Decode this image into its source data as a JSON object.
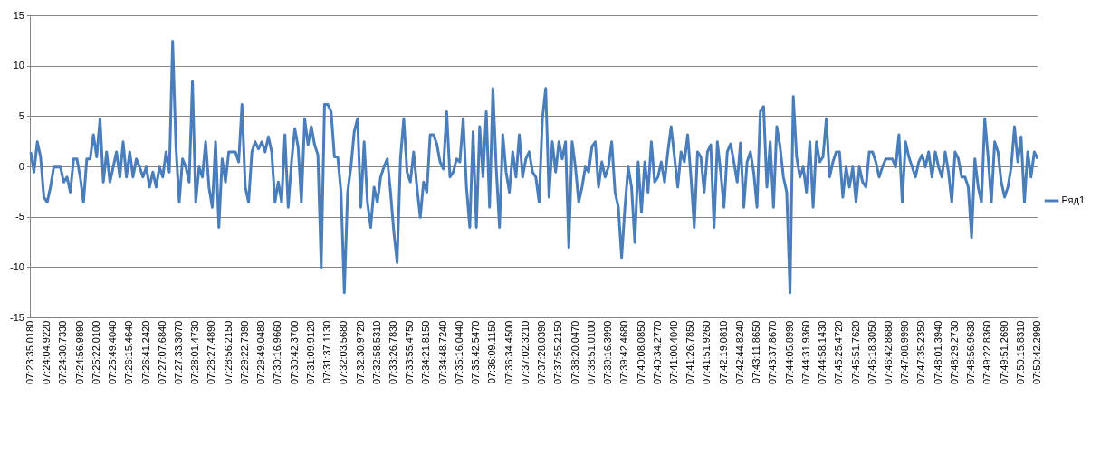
{
  "chart_data": {
    "type": "line",
    "categories": [
      "07:23:35.0180",
      null,
      null,
      null,
      null,
      "07:24:04.9220",
      null,
      null,
      null,
      null,
      "07:24:30.7330",
      null,
      null,
      null,
      null,
      "07:24:56.9890",
      null,
      null,
      null,
      null,
      "07:25:22.0100",
      null,
      null,
      null,
      null,
      "07:25:49.4040",
      null,
      null,
      null,
      null,
      "07:26:15.4640",
      null,
      null,
      null,
      null,
      "07:26:41.2420",
      null,
      null,
      null,
      null,
      "07:27:07.6840",
      null,
      null,
      null,
      null,
      "07:27:33.3070",
      null,
      null,
      null,
      null,
      "07:28:01.4730",
      null,
      null,
      null,
      null,
      "07:28:27.4890",
      null,
      null,
      null,
      null,
      "07:28:56.2150",
      null,
      null,
      null,
      null,
      "07:29:22.7390",
      null,
      null,
      null,
      null,
      "07:29:49.0480",
      null,
      null,
      null,
      null,
      "07:30:16.9660",
      null,
      null,
      null,
      null,
      "07:30:42.3700",
      null,
      null,
      null,
      null,
      "07:31:09.9120",
      null,
      null,
      null,
      null,
      "07:31:37.1130",
      null,
      null,
      null,
      null,
      "07:32:03.5680",
      null,
      null,
      null,
      null,
      "07:32:30.9720",
      null,
      null,
      null,
      null,
      "07:32:58.5310",
      null,
      null,
      null,
      null,
      "07:33:26.7830",
      null,
      null,
      null,
      null,
      "07:33:55.4750",
      null,
      null,
      null,
      null,
      "07:34:21.8150",
      null,
      null,
      null,
      null,
      "07:34:48.7240",
      null,
      null,
      null,
      null,
      "07:35:16.0440",
      null,
      null,
      null,
      null,
      "07:35:42.5470",
      null,
      null,
      null,
      null,
      "07:36:09.1150",
      null,
      null,
      null,
      null,
      "07:36:34.4500",
      null,
      null,
      null,
      null,
      "07:37:02.3210",
      null,
      null,
      null,
      null,
      "07:37:28.0390",
      null,
      null,
      null,
      null,
      "07:37:55.2150",
      null,
      null,
      null,
      null,
      "07:38:20.0470",
      null,
      null,
      null,
      null,
      "07:38:51.0100",
      null,
      null,
      null,
      null,
      "07:39:16.3990",
      null,
      null,
      null,
      null,
      "07:39:42.4680",
      null,
      null,
      null,
      null,
      "07:40:08.0850",
      null,
      null,
      null,
      null,
      "07:40:34.2770",
      null,
      null,
      null,
      null,
      "07:41:00.4040",
      null,
      null,
      null,
      null,
      "07:41:26.7850",
      null,
      null,
      null,
      null,
      "07:41:51.9260",
      null,
      null,
      null,
      null,
      "07:42:19.0810",
      null,
      null,
      null,
      null,
      "07:42:44.8240",
      null,
      null,
      null,
      null,
      "07:43:11.8650",
      null,
      null,
      null,
      null,
      "07:43:37.8670",
      null,
      null,
      null,
      null,
      "07:44:05.8990",
      null,
      null,
      null,
      null,
      "07:44:31.9360",
      null,
      null,
      null,
      null,
      "07:44:58.1430",
      null,
      null,
      null,
      null,
      "07:45:25.4720",
      null,
      null,
      null,
      null,
      "07:45:51.7620",
      null,
      null,
      null,
      null,
      "07:46:18.3050",
      null,
      null,
      null,
      null,
      "07:46:42.8680",
      null,
      null,
      null,
      null,
      "07:47:08.9990",
      null,
      null,
      null,
      null,
      "07:47:35.2350",
      null,
      null,
      null,
      null,
      "07:48:01.3940",
      null,
      null,
      null,
      null,
      "07:48:29.2730",
      null,
      null,
      null,
      null,
      "07:48:56.9630",
      null,
      null,
      null,
      null,
      "07:49:22.8360",
      null,
      null,
      null,
      null,
      "07:49:51.2690",
      null,
      null,
      null,
      null,
      "07:50:15.8310",
      null,
      null,
      null,
      null,
      "07:50:42.2990"
    ],
    "series": [
      {
        "name": "Ряд1",
        "color": "#4a7ebb",
        "values": [
          1.5,
          -0.5,
          2.5,
          1,
          -3,
          -3.5,
          -2,
          0,
          0,
          0,
          -1.5,
          -1,
          -2.5,
          0.8,
          0.8,
          -1,
          -3.5,
          0.8,
          0.8,
          3.2,
          1,
          4.8,
          -1.5,
          1.5,
          -1.5,
          0,
          1.5,
          -1,
          2.5,
          -1,
          1.5,
          -1,
          0.8,
          0,
          -1,
          0,
          -2,
          -0.5,
          -2,
          0,
          -1,
          1.5,
          -0.5,
          12.5,
          2,
          -3.5,
          0.8,
          0,
          -1.5,
          8.5,
          -3.5,
          0,
          -1,
          2.5,
          -2,
          -4,
          2.5,
          -6,
          0.8,
          -1.5,
          1.5,
          1.5,
          1.5,
          0.5,
          6.2,
          -2,
          -3.5,
          1.5,
          2.5,
          1.8,
          2.5,
          1.5,
          3,
          1.5,
          -3.5,
          -1.5,
          -3.5,
          3.2,
          -4,
          0.5,
          3.8,
          2,
          -3.5,
          4.8,
          2.2,
          4,
          2.2,
          1.2,
          -10,
          6.2,
          6.2,
          5.5,
          1,
          1,
          -2.5,
          -12.5,
          -2.5,
          0,
          3.5,
          4.8,
          -4,
          2.5,
          -3.5,
          -6,
          -2,
          -3.5,
          -1,
          0,
          0.8,
          -2.5,
          -6.5,
          -9.5,
          0.8,
          4.8,
          -0.5,
          -1.5,
          1.5,
          -2,
          -5,
          -1.5,
          -2.5,
          3.2,
          3.2,
          2.3,
          0.5,
          -0.2,
          5.5,
          -1,
          -0.5,
          0.8,
          0.5,
          4.8,
          -2,
          -6,
          3.5,
          -6,
          4,
          -1,
          5.5,
          -4,
          7.8,
          0,
          -6,
          3.2,
          -0.5,
          -2.5,
          1.5,
          -1,
          3.2,
          -1,
          0.8,
          1.5,
          -0.5,
          -1,
          -3.5,
          4.8,
          7.8,
          -3,
          2.5,
          -0.5,
          2.5,
          0.8,
          2.5,
          -8,
          2.5,
          0,
          -3.5,
          -2,
          0,
          -0.5,
          2,
          2.5,
          -2,
          0.5,
          -1,
          0,
          2.5,
          -2.5,
          -4,
          -9,
          -4,
          0,
          -2,
          -7.5,
          0.5,
          -4.5,
          0.5,
          -2.5,
          2.5,
          -1.5,
          -1,
          0.5,
          -1.5,
          1.5,
          4,
          1,
          -2,
          1.5,
          0.5,
          3.2,
          -1,
          -6,
          1.5,
          1,
          -2.5,
          1.5,
          2.2,
          -6,
          2.5,
          -0.5,
          -4,
          1.5,
          2.3,
          0.5,
          -1.5,
          2.4,
          -4,
          0.5,
          1.5,
          -0.5,
          -4,
          5.5,
          6,
          -2,
          2.5,
          -4,
          4,
          2,
          -1,
          -2.5,
          -12.5,
          7,
          1,
          -1,
          0,
          -2.5,
          2.5,
          -4,
          2.5,
          0.5,
          1,
          4.8,
          -1,
          0.5,
          1.5,
          1.5,
          -3,
          0,
          -2,
          0,
          -3.5,
          0,
          -1.5,
          -2,
          1.5,
          1.5,
          0.5,
          -1,
          0,
          0.8,
          0.8,
          0.8,
          0,
          3.2,
          -3.5,
          2.5,
          1,
          0,
          -1,
          0.5,
          1.2,
          0,
          1.5,
          -1,
          1.5,
          0,
          -1,
          1.5,
          -0.5,
          -3.5,
          1.5,
          0.8,
          -1,
          -1,
          -2,
          -7,
          0.8,
          -2,
          -3.5,
          4.8,
          1,
          -3.5,
          2.5,
          1.5,
          -1.5,
          -3,
          -2,
          0,
          4,
          0.5,
          3,
          -3.5,
          1.5,
          -1,
          1.5,
          0.8
        ]
      }
    ],
    "ylim": [
      -15,
      15
    ],
    "yticks": [
      -15,
      -10,
      -5,
      0,
      5,
      10,
      15
    ],
    "grid": "y",
    "legend": "right",
    "marker": "none",
    "line_style": "solid"
  }
}
